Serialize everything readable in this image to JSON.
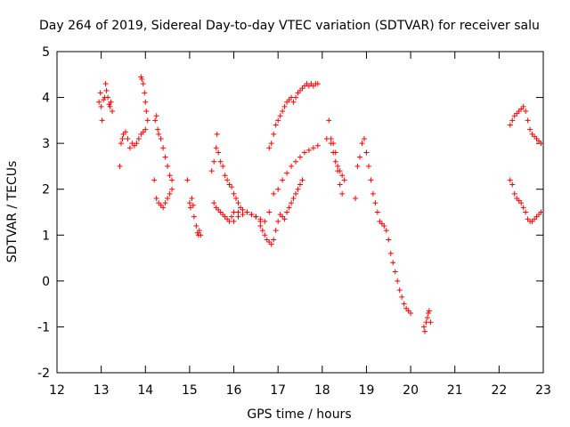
{
  "chart_data": {
    "type": "scatter",
    "title": "Day 264 of 2019, Sidereal Day-to-day VTEC variation (SDTVAR) for receiver salu",
    "xlabel": "GPS time / hours",
    "ylabel": "SDTVAR / TECUs",
    "xlim": [
      12,
      23
    ],
    "ylim": [
      -2,
      5
    ],
    "x_ticks": [
      12,
      13,
      14,
      15,
      16,
      17,
      18,
      19,
      20,
      21,
      22,
      23
    ],
    "y_ticks": [
      -2,
      -1,
      0,
      1,
      2,
      3,
      4,
      5
    ],
    "marker": "+",
    "marker_color": "#ff0000",
    "series": [
      {
        "name": "SDTVAR",
        "x": [
          12.95,
          12.98,
          13.0,
          13.02,
          13.05,
          13.08,
          13.1,
          13.12,
          13.15,
          13.18,
          13.2,
          13.22,
          13.25,
          13.42,
          13.45,
          13.48,
          13.5,
          13.55,
          13.6,
          13.65,
          13.7,
          13.75,
          13.8,
          13.85,
          13.9,
          13.95,
          14.0,
          13.9,
          13.92,
          13.95,
          13.98,
          14.0,
          14.02,
          14.05,
          14.2,
          14.22,
          14.25,
          14.28,
          14.3,
          14.35,
          14.4,
          14.45,
          14.5,
          14.55,
          14.6,
          14.25,
          14.3,
          14.35,
          14.4,
          14.45,
          14.5,
          14.55,
          14.6,
          14.95,
          15.0,
          15.02,
          15.05,
          15.08,
          15.1,
          15.15,
          15.18,
          15.2,
          15.22,
          15.25,
          15.5,
          15.55,
          15.6,
          15.62,
          15.65,
          15.7,
          15.75,
          15.8,
          15.85,
          15.9,
          15.95,
          16.0,
          16.05,
          16.1,
          16.15,
          15.55,
          15.6,
          15.65,
          15.7,
          15.75,
          15.8,
          15.85,
          15.9,
          15.95,
          16.0,
          16.1,
          16.2,
          16.3,
          16.4,
          16.5,
          16.6,
          16.0,
          16.1,
          16.2,
          16.3,
          16.4,
          16.5,
          16.6,
          16.7,
          16.8,
          16.9,
          17.0,
          17.1,
          17.2,
          17.3,
          17.4,
          17.5,
          17.6,
          17.7,
          17.8,
          17.9,
          16.8,
          16.85,
          16.9,
          16.95,
          17.0,
          17.05,
          17.1,
          17.15,
          17.2,
          17.25,
          17.3,
          17.35,
          17.4,
          17.45,
          17.5,
          17.55,
          17.6,
          17.65,
          17.7,
          17.75,
          17.8,
          17.85,
          17.9,
          16.6,
          16.65,
          16.7,
          16.75,
          16.8,
          16.85,
          16.9,
          16.95,
          17.0,
          17.05,
          17.1,
          17.15,
          17.2,
          17.25,
          17.3,
          17.35,
          17.4,
          17.45,
          17.5,
          17.55,
          18.1,
          18.15,
          18.2,
          18.25,
          18.3,
          18.35,
          18.4,
          18.45,
          18.5,
          18.2,
          18.25,
          18.3,
          18.35,
          18.4,
          18.45,
          18.75,
          18.8,
          18.85,
          18.9,
          18.95,
          19.0,
          19.05,
          19.1,
          19.15,
          19.2,
          19.25,
          19.3,
          19.35,
          19.4,
          19.45,
          19.5,
          19.55,
          19.6,
          19.65,
          19.7,
          19.75,
          19.8,
          19.85,
          19.9,
          19.95,
          20.0,
          20.3,
          20.32,
          20.35,
          20.38,
          20.4,
          20.42,
          20.45,
          22.25,
          22.3,
          22.35,
          22.4,
          22.45,
          22.5,
          22.55,
          22.6,
          22.65,
          22.7,
          22.75,
          22.8,
          22.85,
          22.9,
          22.95,
          22.25,
          22.3,
          22.35,
          22.4,
          22.45,
          22.5,
          22.55,
          22.6,
          22.65,
          22.7,
          22.75,
          22.8,
          22.85,
          22.9,
          22.95
        ],
        "y": [
          3.9,
          4.1,
          3.8,
          3.5,
          3.95,
          4.0,
          4.3,
          4.15,
          4.0,
          3.85,
          3.8,
          3.9,
          3.7,
          2.5,
          3.0,
          3.1,
          3.2,
          3.25,
          3.1,
          2.9,
          3.0,
          2.95,
          3.0,
          3.1,
          3.2,
          3.25,
          3.3,
          4.45,
          4.4,
          4.3,
          4.1,
          3.9,
          3.7,
          3.5,
          2.2,
          3.5,
          3.6,
          3.3,
          3.2,
          3.1,
          2.9,
          2.7,
          2.5,
          2.3,
          2.2,
          1.8,
          1.7,
          1.65,
          1.6,
          1.7,
          1.8,
          1.9,
          2.0,
          2.2,
          1.7,
          1.6,
          1.8,
          1.65,
          1.4,
          1.2,
          1.05,
          1.0,
          1.1,
          1.0,
          2.4,
          2.6,
          2.9,
          3.2,
          2.8,
          2.6,
          2.5,
          2.3,
          2.2,
          2.1,
          2.05,
          1.9,
          1.8,
          1.7,
          1.6,
          1.7,
          1.6,
          1.55,
          1.5,
          1.45,
          1.4,
          1.35,
          1.3,
          1.4,
          1.5,
          1.5,
          1.55,
          1.5,
          1.45,
          1.4,
          1.3,
          1.3,
          1.4,
          1.45,
          1.5,
          1.45,
          1.4,
          1.35,
          1.3,
          1.5,
          1.9,
          2.0,
          2.2,
          2.35,
          2.5,
          2.6,
          2.7,
          2.8,
          2.85,
          2.9,
          2.95,
          2.9,
          3.0,
          3.2,
          3.4,
          3.5,
          3.6,
          3.7,
          3.8,
          3.9,
          3.95,
          4.0,
          3.9,
          4.0,
          4.1,
          4.15,
          4.2,
          4.25,
          4.3,
          4.25,
          4.3,
          4.25,
          4.3,
          4.3,
          1.2,
          1.1,
          1.0,
          0.9,
          0.85,
          0.8,
          0.9,
          1.1,
          1.3,
          1.45,
          1.4,
          1.35,
          1.5,
          1.6,
          1.7,
          1.8,
          1.9,
          2.0,
          2.1,
          2.2,
          3.1,
          3.5,
          3.0,
          2.8,
          2.6,
          2.5,
          2.4,
          2.3,
          2.2,
          3.1,
          3.0,
          2.8,
          2.4,
          2.1,
          1.9,
          1.8,
          2.5,
          2.7,
          3.0,
          3.1,
          2.8,
          2.5,
          2.2,
          1.9,
          1.7,
          1.5,
          1.3,
          1.25,
          1.2,
          1.1,
          0.9,
          0.6,
          0.4,
          0.2,
          0.0,
          -0.2,
          -0.35,
          -0.5,
          -0.6,
          -0.65,
          -0.7,
          -1.0,
          -1.1,
          -0.9,
          -0.8,
          -0.7,
          -0.65,
          -0.9,
          2.2,
          2.1,
          1.9,
          1.8,
          1.75,
          1.7,
          1.6,
          1.5,
          1.35,
          1.3,
          1.3,
          1.35,
          1.4,
          1.45,
          1.5,
          3.4,
          3.5,
          3.6,
          3.65,
          3.7,
          3.75,
          3.8,
          3.7,
          3.5,
          3.3,
          3.2,
          3.15,
          3.1,
          3.05,
          3.0
        ]
      }
    ]
  }
}
